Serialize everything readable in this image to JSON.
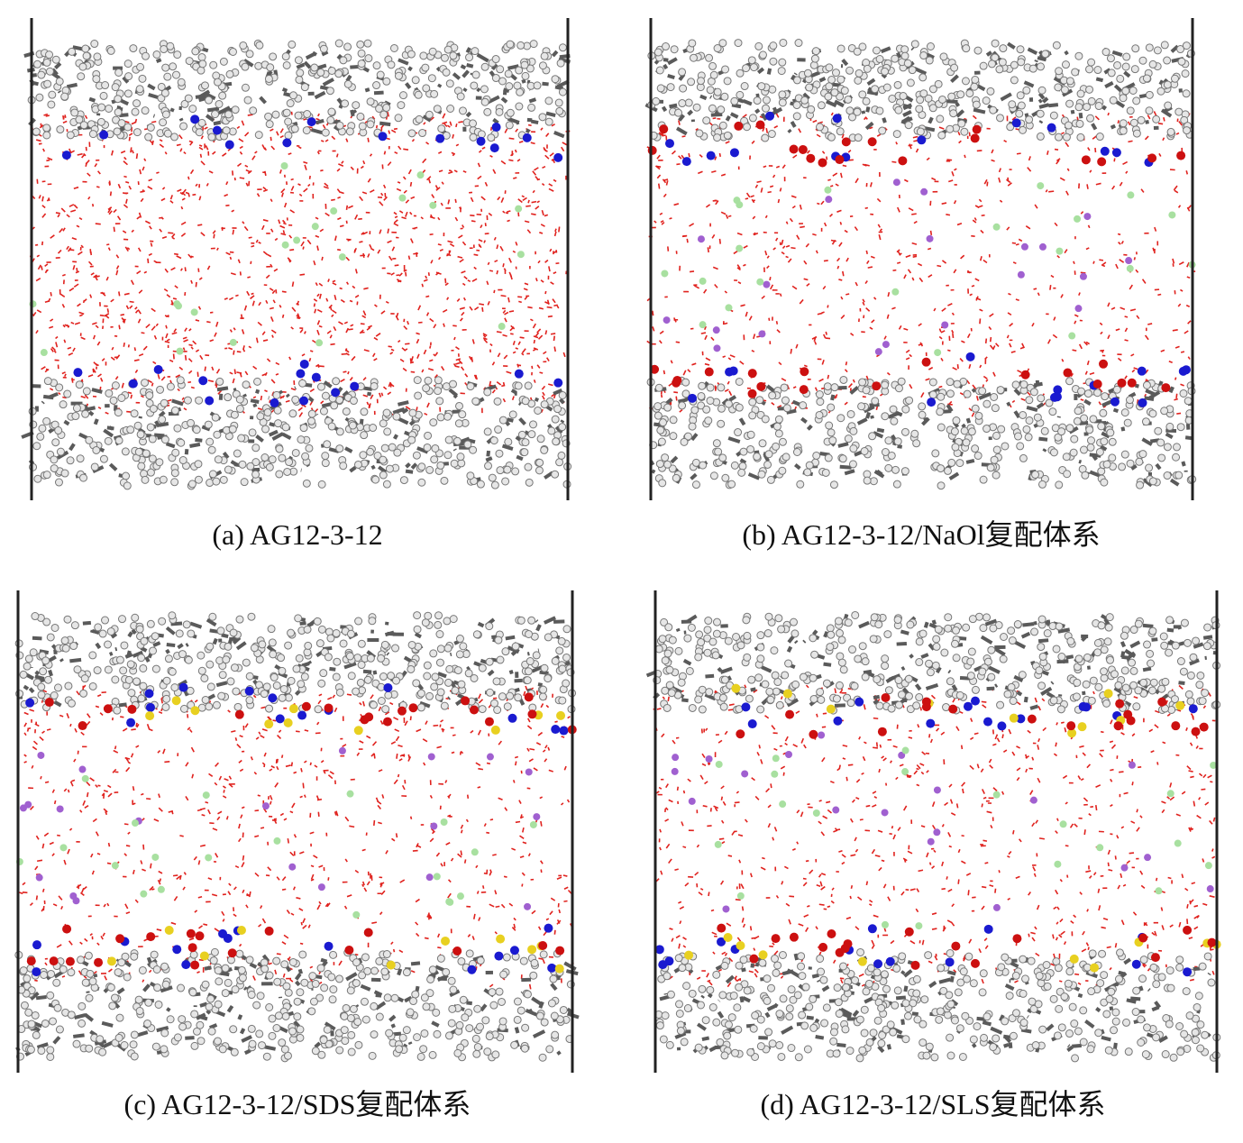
{
  "panels": [
    {
      "caption": "(a) AG12-3-12"
    },
    {
      "caption": "(b) AG12-3-12/NaOl复配体系"
    },
    {
      "caption": "(c) AG12-3-12/SDS复配体系"
    },
    {
      "caption": "(d) AG12-3-12/SLS复配体系"
    }
  ]
}
